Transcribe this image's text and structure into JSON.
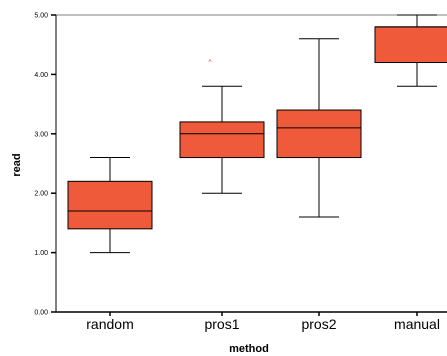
{
  "chart_data": {
    "type": "boxplot",
    "xlabel": "method",
    "ylabel": "read",
    "ylim": [
      0,
      5
    ],
    "yticks": [
      "0.00",
      "1.00",
      "2.00",
      "3.00",
      "4.00",
      "5.00"
    ],
    "grid": false,
    "categories": [
      "random",
      "pros1",
      "pros2",
      "manual"
    ],
    "boxes": [
      {
        "category": "random",
        "min": 1.0,
        "q1": 1.4,
        "median": 1.7,
        "q3": 2.2,
        "max": 2.6,
        "outliers": []
      },
      {
        "category": "pros1",
        "min": 2.0,
        "q1": 2.6,
        "median": 3.0,
        "q3": 3.2,
        "max": 3.8,
        "outliers": [
          4.2
        ]
      },
      {
        "category": "pros2",
        "min": 1.6,
        "q1": 2.6,
        "median": 3.1,
        "q3": 3.4,
        "max": 4.6,
        "outliers": []
      },
      {
        "category": "manual",
        "min": 3.8,
        "q1": 4.2,
        "median": 4.8,
        "q3": 4.8,
        "max": 5.0,
        "outliers": []
      }
    ],
    "outlier_marker": "^",
    "colors": {
      "box_fill": "#ef5a3a",
      "box_stroke": "#000000",
      "outlier": "#d4502f"
    }
  }
}
